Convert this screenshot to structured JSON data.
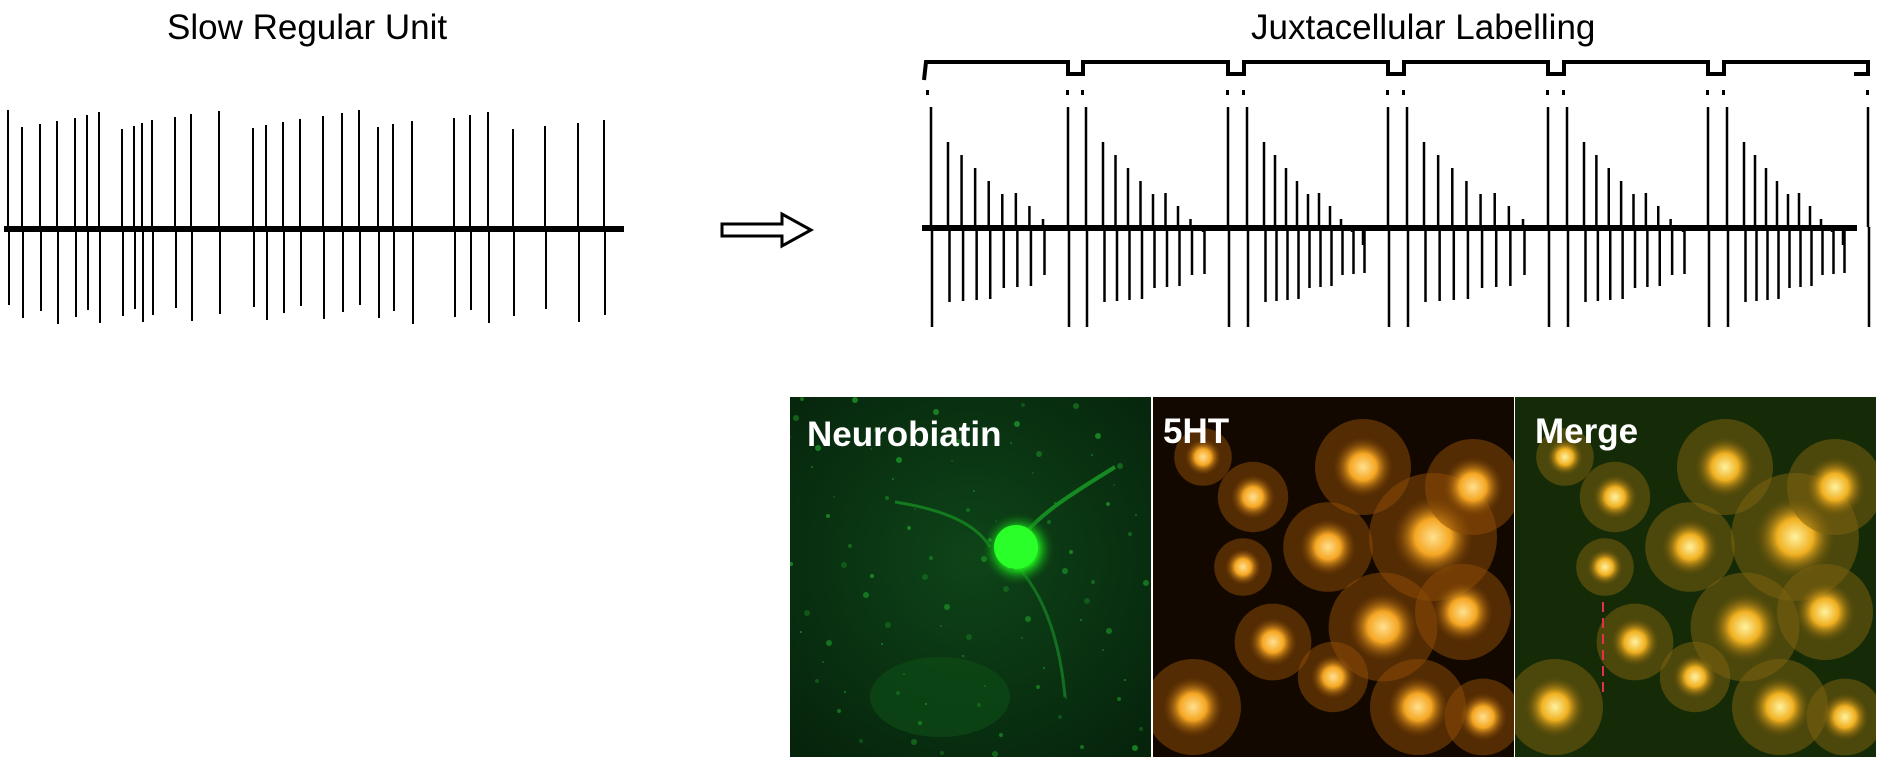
{
  "left_panel": {
    "title": "Slow Regular Unit"
  },
  "right_panel": {
    "title": "Juxtacellular Labelling"
  },
  "arrow": {
    "icon": "right-arrow-icon"
  },
  "micrographs": [
    {
      "label": "Neurobiatin",
      "stain_color": "#22d422"
    },
    {
      "label": "5HT",
      "stain_color": "#f0a020"
    },
    {
      "label": "Merge",
      "stain_color": "#f4c830"
    }
  ]
}
